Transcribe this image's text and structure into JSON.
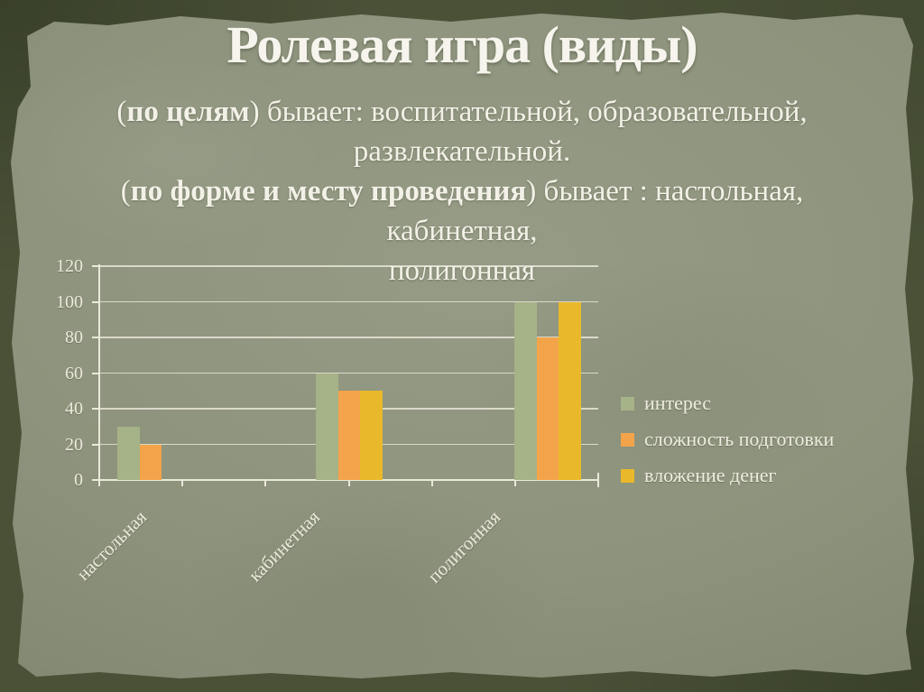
{
  "slide": {
    "title": "Ролевая игра (виды)",
    "body": {
      "p1": {
        "open": "(",
        "bold": "по целям",
        "rest": ") бывает: воспитательной, образовательной,",
        "line2": "развлекательной."
      },
      "p2": {
        "open": "(",
        "bold": "по форме и месту проведения",
        "rest": ") бывает : настольная, кабинетная,",
        "line2": "полигонная"
      }
    }
  },
  "chart_data": {
    "type": "bar",
    "title": "",
    "categories": [
      "настольная",
      "кабинетная",
      "полигонная"
    ],
    "series": [
      {
        "name": "интерес",
        "color": "#a6b287",
        "values": [
          30,
          60,
          100
        ]
      },
      {
        "name": "сложность подготовки",
        "color": "#f3a44a",
        "values": [
          20,
          50,
          80
        ]
      },
      {
        "name": "вложение денег",
        "color": "#e9b92b",
        "values": [
          0,
          50,
          100
        ]
      }
    ],
    "xlabel": "",
    "ylabel": "",
    "ylim": [
      0,
      120
    ],
    "yticks": [
      0,
      20,
      40,
      60,
      80,
      100,
      120
    ],
    "grid": true,
    "legend_position": "right"
  },
  "colors": {
    "frame": "#4a5137",
    "paper": "#8d937c",
    "grid": "#eae8db",
    "chart_text": "#eceadc",
    "title_text": "#f6f4ec",
    "body_text": "#f3f1e7"
  }
}
